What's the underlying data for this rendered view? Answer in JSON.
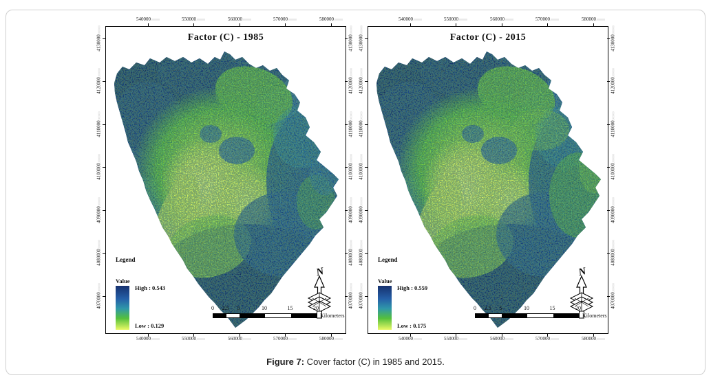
{
  "figure": {
    "caption_label": "Figure 7:",
    "caption_text": " Cover factor (C) in 1985 and 2015."
  },
  "axes": {
    "x_ticks": [
      "540000",
      "550000",
      "560000",
      "570000",
      "580000"
    ],
    "y_ticks": [
      "4130000",
      "4120000",
      "4110000",
      "4100000",
      "4090000",
      "4080000",
      "4070000"
    ],
    "tick_decimal_suffix": ",000000"
  },
  "maps": [
    {
      "title": "Factor (C) - 1985",
      "legend": {
        "header": "Legend",
        "value_label": "Value",
        "high_label": "High : 0.543",
        "low_label": "Low : 0.129"
      },
      "north_arrow_label": "N",
      "scale_bar": {
        "labels": [
          "0",
          "2.5",
          "5",
          "10",
          "15",
          "20"
        ],
        "unit": "Kilometers"
      }
    },
    {
      "title": "Factor (C) - 2015",
      "legend": {
        "header": "Legend",
        "value_label": "Value",
        "high_label": "High : 0.559",
        "low_label": "Low : 0.175"
      },
      "north_arrow_label": "N",
      "scale_bar": {
        "labels": [
          "0",
          "2.5",
          "5",
          "10",
          "15",
          "20"
        ],
        "unit": "Kilometers"
      }
    }
  ],
  "color_ramp": {
    "high_color": "#16316f",
    "upper_mid_color": "#2560a8",
    "teal_color": "#2f98a9",
    "green_color": "#55c03c",
    "low_color": "#e9f966"
  }
}
